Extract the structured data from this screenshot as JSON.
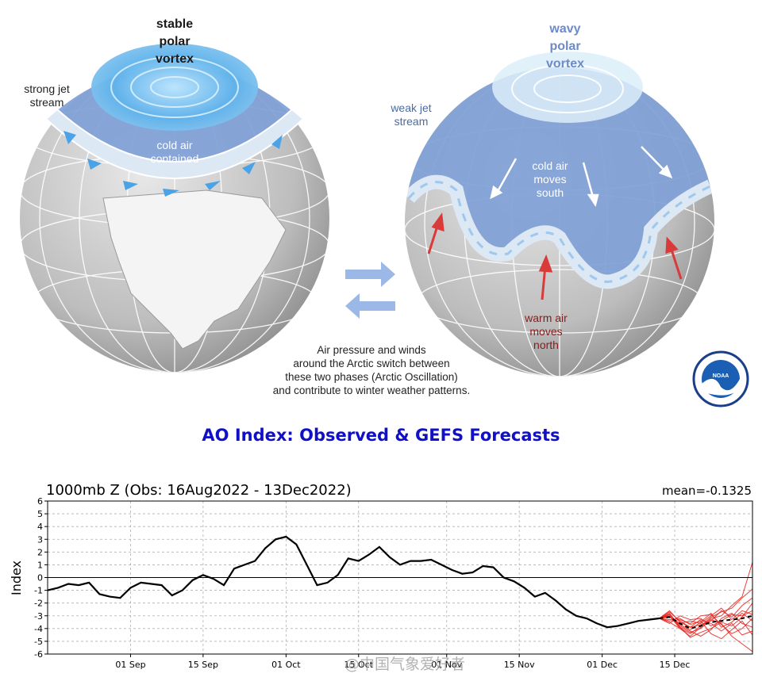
{
  "illustration": {
    "left_globe": {
      "title_lines": [
        "stable",
        "polar",
        "vortex"
      ],
      "jet_label_lines": [
        "strong jet",
        "stream"
      ],
      "cold_air_lines": [
        "cold air",
        "contained"
      ]
    },
    "right_globe": {
      "title_lines": [
        "wavy",
        "polar",
        "vortex"
      ],
      "jet_label_lines": [
        "weak jet",
        "stream"
      ],
      "cold_air_lines": [
        "cold air",
        "moves",
        "south"
      ],
      "warm_air_lines": [
        "warm air",
        "moves",
        "north"
      ]
    },
    "caption_lines": [
      "Air pressure and winds",
      "around the Arctic switch between",
      "these two phases (Arctic Oscillation)",
      "and contribute to winter weather patterns."
    ],
    "logo_text": "NOAA",
    "colors": {
      "globe_gray": "#c8c8c8",
      "cold_blue": "#7f9fd6",
      "jet_band": "#dde8f5",
      "arrow_blue": "#4aa3e6",
      "warm_red": "#d93a3a",
      "swap_arrow": "#9bb8e6"
    }
  },
  "chart_heading": "AO Index: Observed & GEFS Forecasts",
  "watermark": "@中国气象爱好者",
  "chart_data": {
    "type": "line",
    "title": "1000mb Z (Obs: 16Aug2022 - 13Dec2022)",
    "annotation": "mean=-0.1325",
    "ylabel": "Index",
    "xlabel": "",
    "ylim": [
      -6,
      6
    ],
    "yticks": [
      6,
      5,
      4,
      3,
      2,
      1,
      0,
      -1,
      -2,
      -3,
      -4,
      -5,
      -6
    ],
    "x_range_days": [
      0,
      136
    ],
    "xtick_labels": [
      {
        "label": "01 Sep",
        "day": 16
      },
      {
        "label": "15 Sep",
        "day": 30
      },
      {
        "label": "01 Oct",
        "day": 46
      },
      {
        "label": "15 Oct",
        "day": 60
      },
      {
        "label": "01 Nov",
        "day": 77
      },
      {
        "label": "15 Nov",
        "day": 91
      },
      {
        "label": "01 Dec",
        "day": 107
      },
      {
        "label": "15 Dec",
        "day": 121
      }
    ],
    "grid": true,
    "observed_color": "#000000",
    "forecast_color": "#e8201a",
    "observed": {
      "days": [
        0,
        2,
        4,
        6,
        8,
        10,
        12,
        14,
        16,
        18,
        20,
        22,
        24,
        26,
        28,
        30,
        32,
        34,
        36,
        38,
        40,
        42,
        44,
        46,
        48,
        50,
        52,
        54,
        56,
        58,
        60,
        62,
        64,
        66,
        68,
        70,
        72,
        74,
        76,
        78,
        80,
        82,
        84,
        86,
        88,
        90,
        92,
        94,
        96,
        98,
        100,
        102,
        104,
        106,
        108,
        110,
        112,
        114,
        116,
        118
      ],
      "values": [
        -1.0,
        -0.8,
        -0.5,
        -0.6,
        -0.4,
        -1.3,
        -1.5,
        -1.6,
        -0.8,
        -0.4,
        -0.5,
        -0.6,
        -1.4,
        -1.0,
        -0.2,
        0.2,
        -0.1,
        -0.6,
        0.7,
        1.0,
        1.3,
        2.3,
        3.0,
        3.2,
        2.6,
        1.0,
        -0.6,
        -0.4,
        0.2,
        1.5,
        1.3,
        1.8,
        2.4,
        1.6,
        1.0,
        1.3,
        1.3,
        1.4,
        1.0,
        0.6,
        0.3,
        0.4,
        0.9,
        0.8,
        0.0,
        -0.3,
        -0.8,
        -1.5,
        -1.2,
        -1.8,
        -2.5,
        -3.0,
        -3.2,
        -3.6,
        -3.9,
        -3.8,
        -3.6,
        -3.4,
        -3.3,
        -3.2
      ]
    },
    "forecast": {
      "days": [
        118,
        120,
        122,
        124,
        126,
        128,
        130,
        132,
        134,
        136
      ],
      "ensemble": [
        [
          -3.2,
          -2.6,
          -3.5,
          -3.9,
          -3.7,
          -3.4,
          -2.6,
          -3.1,
          -2.2,
          -1.6
        ],
        [
          -3.2,
          -3.0,
          -4.0,
          -4.4,
          -3.8,
          -3.1,
          -2.7,
          -2.4,
          -1.6,
          -0.9
        ],
        [
          -3.2,
          -3.6,
          -3.0,
          -3.3,
          -3.2,
          -3.8,
          -3.4,
          -2.9,
          -3.0,
          -2.6
        ],
        [
          -3.2,
          -2.8,
          -3.9,
          -4.7,
          -4.3,
          -4.0,
          -3.5,
          -3.8,
          -3.1,
          -2.0
        ],
        [
          -3.2,
          -3.4,
          -3.3,
          -3.6,
          -3.0,
          -2.9,
          -3.7,
          -4.4,
          -4.0,
          -3.2
        ],
        [
          -3.2,
          -2.9,
          -3.8,
          -4.2,
          -4.6,
          -4.1,
          -3.2,
          -2.8,
          -3.6,
          -3.9
        ],
        [
          -3.2,
          -3.1,
          -3.6,
          -3.4,
          -3.6,
          -3.0,
          -2.4,
          -3.3,
          -2.6,
          -2.9
        ],
        [
          -3.2,
          -2.7,
          -3.4,
          -3.9,
          -3.3,
          -3.6,
          -4.2,
          -3.6,
          -4.5,
          -4.2
        ],
        [
          -3.2,
          -3.5,
          -4.0,
          -4.6,
          -3.9,
          -3.2,
          -3.0,
          -2.2,
          -1.5,
          1.2
        ],
        [
          -3.2,
          -3.3,
          -3.2,
          -3.7,
          -3.4,
          -4.4,
          -4.8,
          -4.1,
          -3.4,
          -4.5
        ],
        [
          -3.2,
          -2.9,
          -3.7,
          -4.1,
          -3.5,
          -2.8,
          -3.9,
          -3.5,
          -2.8,
          -3.4
        ],
        [
          -3.2,
          -3.0,
          -3.9,
          -4.3,
          -4.0,
          -3.3,
          -3.6,
          -4.6,
          -5.2,
          -5.8
        ]
      ],
      "mean": [
        -3.2,
        -3.1,
        -3.6,
        -4.0,
        -3.8,
        -3.5,
        -3.4,
        -3.3,
        -3.2,
        -3.0
      ]
    }
  }
}
